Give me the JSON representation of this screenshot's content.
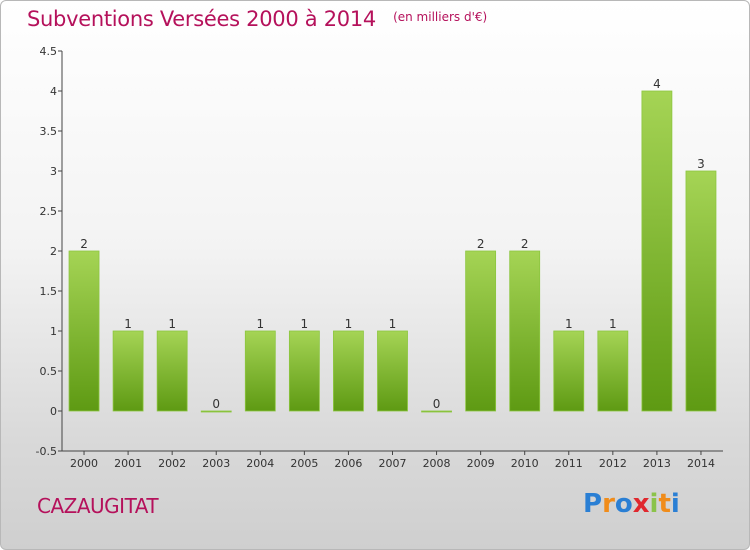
{
  "header": {
    "title": "Subventions Versées 2000 à 2014",
    "subtitle": "(en milliers d'€)"
  },
  "footer": {
    "commune": "CAZAUGITAT",
    "logo_text": "Proxiti"
  },
  "colors": {
    "title": "#b5115b",
    "bar_light": "#a5d455",
    "bar_dark": "#5e9a13",
    "axis_text": "#333333"
  },
  "chart_data": {
    "type": "bar",
    "title": "Subventions Versées 2000 à 2014",
    "subtitle": "(en milliers d'€)",
    "categories": [
      "2000",
      "2001",
      "2002",
      "2003",
      "2004",
      "2005",
      "2006",
      "2007",
      "2008",
      "2009",
      "2010",
      "2011",
      "2012",
      "2013",
      "2014"
    ],
    "values": [
      2,
      1,
      1,
      0,
      1,
      1,
      1,
      1,
      0,
      2,
      2,
      1,
      1,
      4,
      3
    ],
    "data_labels": [
      "2",
      "1",
      "1",
      "0",
      "1",
      "1",
      "1",
      "1",
      "0",
      "2",
      "2",
      "1",
      "1",
      "4",
      "3"
    ],
    "yticks": [
      "-0.5",
      "0",
      "0.5",
      "1",
      "1.5",
      "2",
      "2.5",
      "3",
      "3.5",
      "4",
      "4.5"
    ],
    "ylim": [
      -0.5,
      4.5
    ],
    "xlabel": "",
    "ylabel": "",
    "grid": false,
    "legend": "none"
  }
}
